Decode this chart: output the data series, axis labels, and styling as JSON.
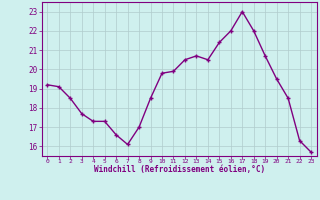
{
  "x": [
    0,
    1,
    2,
    3,
    4,
    5,
    6,
    7,
    8,
    9,
    10,
    11,
    12,
    13,
    14,
    15,
    16,
    17,
    18,
    19,
    20,
    21,
    22,
    23
  ],
  "y": [
    19.2,
    19.1,
    18.5,
    17.7,
    17.3,
    17.3,
    16.6,
    16.1,
    17.0,
    18.5,
    19.8,
    19.9,
    20.5,
    20.7,
    20.5,
    21.4,
    22.0,
    23.0,
    22.0,
    20.7,
    19.5,
    18.5,
    16.3,
    15.7
  ],
  "line_color": "#800080",
  "marker": "+",
  "marker_size": 3,
  "bg_color": "#cff0ee",
  "grid_color": "#b0cccc",
  "xlabel": "Windchill (Refroidissement éolien,°C)",
  "xlabel_color": "#800080",
  "tick_color": "#800080",
  "spine_color": "#800080",
  "ylim": [
    15.5,
    23.5
  ],
  "yticks": [
    16,
    17,
    18,
    19,
    20,
    21,
    22,
    23
  ],
  "xticks": [
    0,
    1,
    2,
    3,
    4,
    5,
    6,
    7,
    8,
    9,
    10,
    11,
    12,
    13,
    14,
    15,
    16,
    17,
    18,
    19,
    20,
    21,
    22,
    23
  ],
  "line_width": 1.0
}
